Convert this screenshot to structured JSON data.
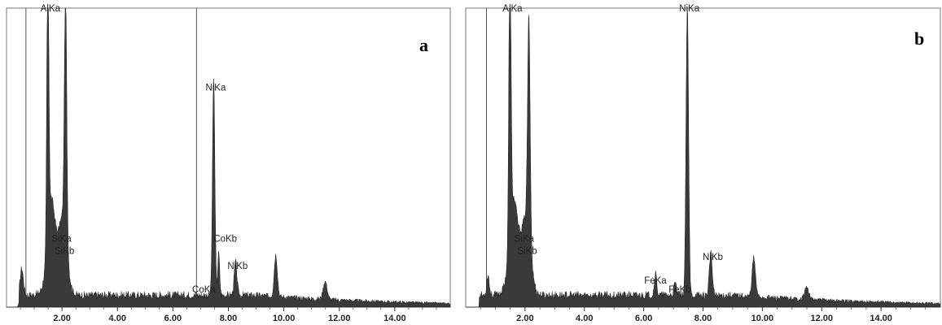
{
  "chart_data": [
    {
      "type": "area",
      "panel_label": "a",
      "xlim": [
        0,
        16
      ],
      "ylim": [
        0,
        100
      ],
      "x_ticks": [
        "2.00",
        "4.00",
        "6.00",
        "8.00",
        "10.00",
        "12.00",
        "14.00"
      ],
      "x_tick_values": [
        2,
        4,
        6,
        8,
        10,
        12,
        14
      ],
      "vertical_lines": [
        0.7,
        6.85
      ],
      "baseline": 4,
      "peaks": [
        {
          "x": 0.55,
          "y": 9,
          "w": 0.08
        },
        {
          "x": 1.49,
          "y": 100,
          "w": 0.05
        },
        {
          "x": 1.6,
          "y": 22,
          "w": 0.18
        },
        {
          "x": 2.13,
          "y": 83,
          "w": 0.06
        },
        {
          "x": 2.05,
          "y": 20,
          "w": 0.2
        },
        {
          "x": 7.47,
          "y": 73,
          "w": 0.06
        },
        {
          "x": 7.65,
          "y": 14,
          "w": 0.05
        },
        {
          "x": 8.26,
          "y": 11,
          "w": 0.07
        },
        {
          "x": 9.71,
          "y": 14,
          "w": 0.08
        },
        {
          "x": 11.49,
          "y": 6,
          "w": 0.1
        }
      ],
      "peak_labels": [
        {
          "text": "AlKa",
          "x": 1.49,
          "y": 100
        },
        {
          "text": "SiKa",
          "x": 1.8,
          "y": 24
        },
        {
          "text": "SiKb",
          "x": 1.85,
          "y": 20
        },
        {
          "text": "NiKa",
          "x": 7.47,
          "y": 73
        },
        {
          "text": "CoKb",
          "x": 7.7,
          "y": 24
        },
        {
          "text": "NiKb",
          "x": 8.26,
          "y": 15
        },
        {
          "text": "CoKa",
          "x": 6.93,
          "y": 7
        }
      ],
      "fill_color": "#3a3a3a"
    },
    {
      "type": "area",
      "panel_label": "b",
      "xlim": [
        0,
        16
      ],
      "ylim": [
        0,
        100
      ],
      "x_ticks": [
        "2.00",
        "4.00",
        "6.00",
        "8.00",
        "10.00",
        "12.00",
        "14.00"
      ],
      "x_tick_values": [
        2,
        4,
        6,
        8,
        10,
        12,
        14
      ],
      "vertical_lines": [
        0.7
      ],
      "baseline": 4,
      "peaks": [
        {
          "x": 0.75,
          "y": 7,
          "w": 0.06
        },
        {
          "x": 1.49,
          "y": 100,
          "w": 0.05
        },
        {
          "x": 1.6,
          "y": 22,
          "w": 0.18
        },
        {
          "x": 2.13,
          "y": 73,
          "w": 0.06
        },
        {
          "x": 2.05,
          "y": 20,
          "w": 0.2
        },
        {
          "x": 6.4,
          "y": 7,
          "w": 0.06
        },
        {
          "x": 7.47,
          "y": 98,
          "w": 0.06
        },
        {
          "x": 7.06,
          "y": 4,
          "w": 0.06
        },
        {
          "x": 8.26,
          "y": 14,
          "w": 0.07
        },
        {
          "x": 9.71,
          "y": 13,
          "w": 0.08
        },
        {
          "x": 11.49,
          "y": 4,
          "w": 0.1
        }
      ],
      "peak_labels": [
        {
          "text": "AlKa",
          "x": 1.49,
          "y": 100
        },
        {
          "text": "SiKa",
          "x": 1.8,
          "y": 24
        },
        {
          "text": "SiKb",
          "x": 1.85,
          "y": 20
        },
        {
          "text": "NiKa",
          "x": 7.47,
          "y": 100
        },
        {
          "text": "FeKa",
          "x": 6.4,
          "y": 10
        },
        {
          "text": "FeKb",
          "x": 7.06,
          "y": 7
        },
        {
          "text": "NiKb",
          "x": 8.26,
          "y": 18
        }
      ],
      "fill_color": "#3a3a3a"
    }
  ]
}
